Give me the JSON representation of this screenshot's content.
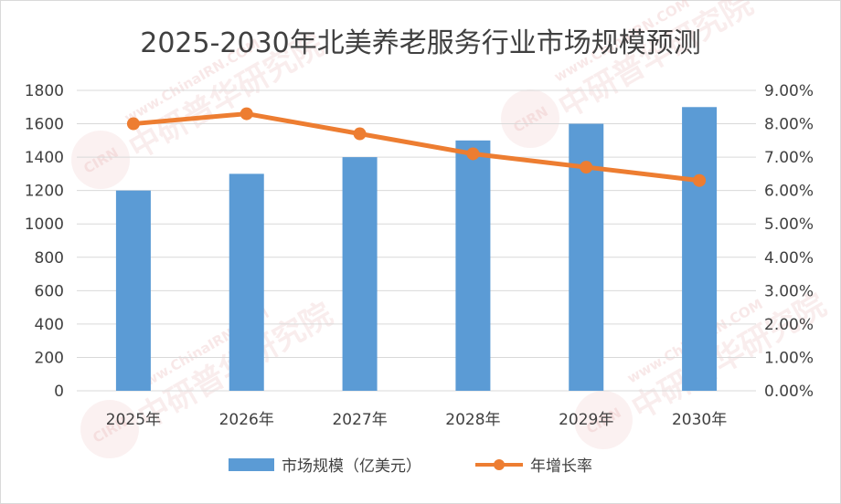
{
  "chart_data": {
    "type": "bar+line",
    "title": "2025-2030年北美养老服务行业市场规模预测",
    "categories": [
      "2025年",
      "2026年",
      "2027年",
      "2028年",
      "2029年",
      "2030年"
    ],
    "series": [
      {
        "name": "市场规模（亿美元）",
        "type": "bar",
        "axis": "left",
        "color": "#5b9bd5",
        "values": [
          1200,
          1300,
          1400,
          1500,
          1600,
          1700
        ]
      },
      {
        "name": "年增长率",
        "type": "line",
        "axis": "right",
        "color": "#ed7d31",
        "values": [
          8.0,
          8.3,
          7.7,
          7.1,
          6.7,
          6.3
        ]
      }
    ],
    "y_left": {
      "min": 0,
      "max": 1800,
      "step": 200,
      "ticks": [
        "0",
        "200",
        "400",
        "600",
        "800",
        "1000",
        "1200",
        "1400",
        "1600",
        "1800"
      ]
    },
    "y_right": {
      "min": 0,
      "max": 9,
      "step": 1,
      "ticks": [
        "0.00%",
        "1.00%",
        "2.00%",
        "3.00%",
        "4.00%",
        "5.00%",
        "6.00%",
        "7.00%",
        "8.00%",
        "9.00%"
      ]
    },
    "grid": true,
    "legend_position": "bottom"
  },
  "watermark": {
    "cn": "中研普华研究院",
    "en": "www.ChinaIRN.COM",
    "logo": "CIRN"
  }
}
